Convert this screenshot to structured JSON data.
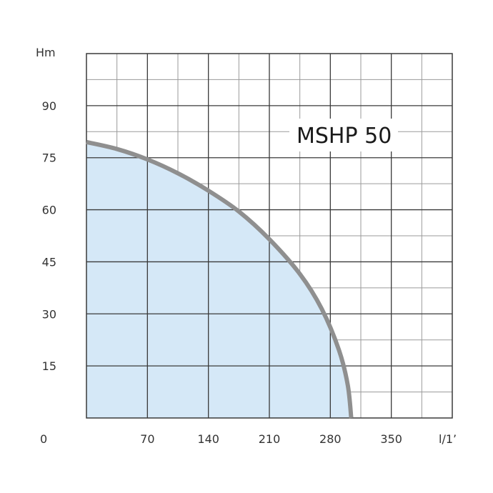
{
  "chart_data": {
    "type": "area",
    "title": "MSHP 50",
    "xlabel": "l/1’",
    "ylabel": "Hm",
    "origin_label": "0",
    "xlim": [
      0,
      420
    ],
    "ylim": [
      0,
      105
    ],
    "x_ticks": [
      70,
      140,
      210,
      280,
      350
    ],
    "y_ticks": [
      15,
      30,
      45,
      60,
      75,
      90
    ],
    "grid": true,
    "series": [
      {
        "x": [
          0,
          35,
          70,
          105,
          140,
          175,
          210,
          245,
          270,
          290,
          300,
          304
        ],
        "values": [
          79.5,
          77.5,
          74.5,
          70.5,
          65.5,
          59.5,
          51.5,
          41.5,
          31.5,
          19.5,
          9.5,
          0
        ]
      }
    ],
    "colors": {
      "fill": "#d5e8f7",
      "curve": "#8f8f8f",
      "grid": "#3a3a3a",
      "minor_grid": "#9a9a9a"
    }
  }
}
